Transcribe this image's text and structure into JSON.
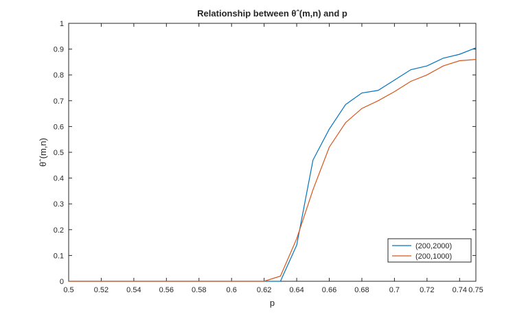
{
  "chart_data": {
    "type": "line",
    "title": "Relationship between θˆ(m,n) and p",
    "xlabel": "p",
    "ylabel": "θˆ(m,n)",
    "xlim": [
      0.5,
      0.75
    ],
    "ylim": [
      0,
      1
    ],
    "xticks": [
      "0.5",
      "0.52",
      "0.54",
      "0.56",
      "0.58",
      "0.6",
      "0.62",
      "0.64",
      "0.66",
      "0.68",
      "0.7",
      "0.72",
      "0.74",
      "0.75"
    ],
    "yticks": [
      "0",
      "0.1",
      "0.2",
      "0.3",
      "0.4",
      "0.5",
      "0.6",
      "0.7",
      "0.8",
      "0.9",
      "1"
    ],
    "grid": false,
    "legend_position": "bottom-right",
    "x": [
      0.5,
      0.51,
      0.52,
      0.53,
      0.54,
      0.55,
      0.56,
      0.57,
      0.58,
      0.59,
      0.6,
      0.61,
      0.62,
      0.63,
      0.64,
      0.65,
      0.66,
      0.67,
      0.68,
      0.69,
      0.7,
      0.71,
      0.72,
      0.73,
      0.74,
      0.75
    ],
    "series": [
      {
        "name": "(200,2000)",
        "color": "#0072bd",
        "values": [
          0,
          0,
          0,
          0,
          0,
          0,
          0,
          0,
          0,
          0,
          0,
          0,
          0,
          0,
          0.14,
          0.47,
          0.59,
          0.685,
          0.73,
          0.74,
          0.78,
          0.82,
          0.835,
          0.865,
          0.88,
          0.905
        ]
      },
      {
        "name": "(200,1000)",
        "color": "#d95319",
        "values": [
          0,
          0,
          0,
          0,
          0,
          0,
          0,
          0,
          0,
          0,
          0,
          0,
          0,
          0.02,
          0.165,
          0.355,
          0.52,
          0.615,
          0.67,
          0.7,
          0.735,
          0.775,
          0.8,
          0.835,
          0.855,
          0.86
        ]
      }
    ]
  }
}
